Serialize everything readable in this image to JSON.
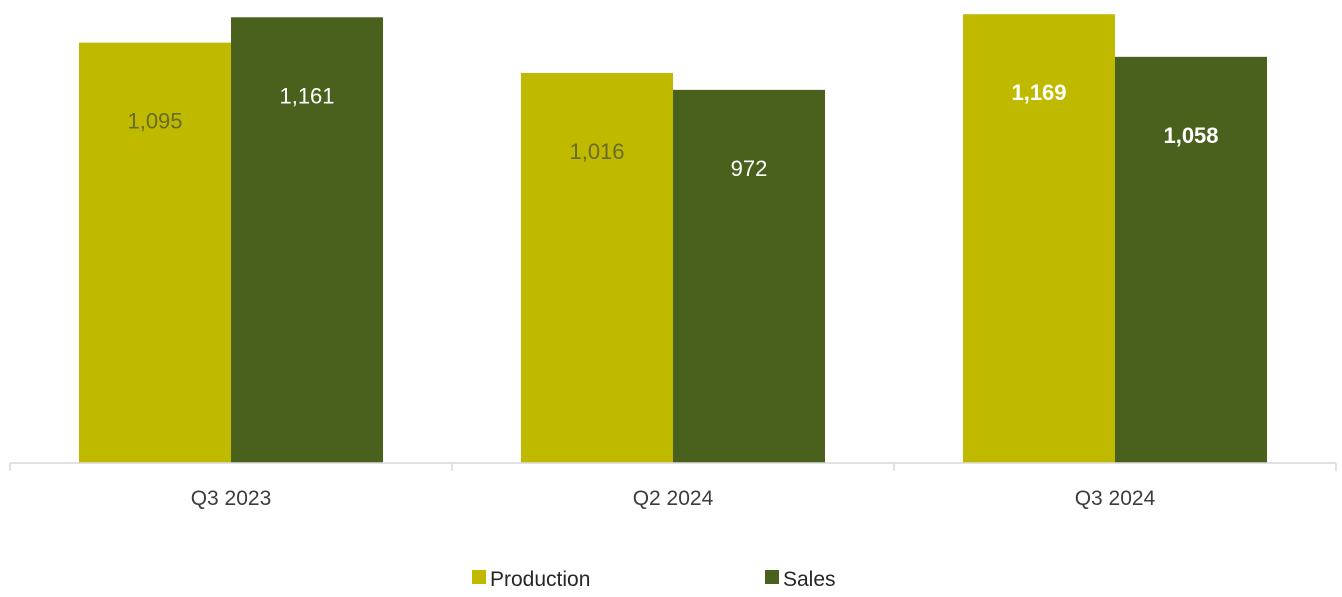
{
  "chart_data": {
    "type": "bar",
    "categories": [
      "Q3 2023",
      "Q2 2024",
      "Q3 2024"
    ],
    "series": [
      {
        "name": "Production",
        "color": "#bfba00",
        "values": [
          1095,
          1016,
          1169
        ],
        "labels": [
          "1,095",
          "1,016",
          "1,169"
        ],
        "label_colors": [
          "#6b6b2a",
          "#6b6b2a",
          "#ffffff"
        ],
        "label_bold": [
          false,
          false,
          true
        ]
      },
      {
        "name": "Sales",
        "color": "#4a601d",
        "values": [
          1161,
          972,
          1058
        ],
        "labels": [
          "1,161",
          "972",
          "1,058"
        ],
        "label_colors": [
          "#ffffff",
          "#ffffff",
          "#ffffff"
        ],
        "label_bold": [
          false,
          false,
          true
        ]
      }
    ],
    "ylim": [
      0,
      1180
    ],
    "grid": false,
    "legend": "bottom",
    "axis_color": "#d9d9d9"
  }
}
